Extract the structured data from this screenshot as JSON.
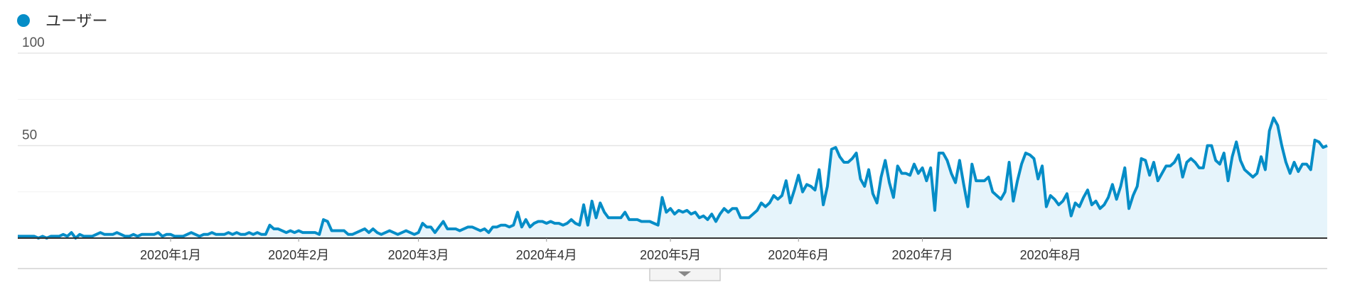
{
  "chart_data": {
    "type": "area",
    "title": "",
    "xlabel": "",
    "ylabel": "",
    "ylim": [
      0,
      100
    ],
    "grid": true,
    "legend_position": "top-left",
    "colors": {
      "line": "#058DC7",
      "fill": "#E6F4FB",
      "grid": "#E5E5E5",
      "baseline": "#333333",
      "text": "#333333"
    },
    "yticks": [
      "100",
      "50"
    ],
    "ytick_values": [
      100,
      50
    ],
    "xticks": [
      {
        "label": "2020年1月",
        "date": "2020-01-01"
      },
      {
        "label": "2020年2月",
        "date": "2020-02-01"
      },
      {
        "label": "2020年3月",
        "date": "2020-03-01"
      },
      {
        "label": "2020年4月",
        "date": "2020-04-01"
      },
      {
        "label": "2020年5月",
        "date": "2020-05-01"
      },
      {
        "label": "2020年6月",
        "date": "2020-06-01"
      },
      {
        "label": "2020年7月",
        "date": "2020-07-01"
      },
      {
        "label": "2020年8月",
        "date": "2020-08-01"
      }
    ],
    "series": [
      {
        "name": "ユーザー",
        "x_start": "2019-11-25",
        "x_step_days": 1,
        "values": [
          1,
          1,
          1,
          1,
          1,
          0,
          1,
          0,
          1,
          1,
          1,
          2,
          1,
          3,
          0,
          2,
          1,
          1,
          1,
          2,
          3,
          2,
          2,
          2,
          3,
          2,
          1,
          1,
          2,
          1,
          2,
          2,
          2,
          2,
          3,
          1,
          2,
          2,
          1,
          1,
          1,
          2,
          3,
          2,
          1,
          2,
          2,
          3,
          2,
          2,
          2,
          3,
          2,
          3,
          2,
          2,
          3,
          2,
          3,
          2,
          2,
          7,
          5,
          5,
          4,
          3,
          4,
          3,
          4,
          3,
          3,
          3,
          3,
          2,
          10,
          9,
          4,
          4,
          4,
          4,
          2,
          2,
          3,
          4,
          5,
          3,
          5,
          3,
          2,
          3,
          4,
          3,
          2,
          3,
          4,
          3,
          2,
          3,
          8,
          6,
          6,
          3,
          6,
          9,
          5,
          5,
          5,
          4,
          5,
          6,
          6,
          5,
          4,
          5,
          3,
          6,
          6,
          7,
          7,
          6,
          7,
          14,
          6,
          10,
          6,
          8,
          9,
          9,
          8,
          9,
          8,
          8,
          7,
          8,
          10,
          8,
          7,
          18,
          7,
          20,
          11,
          19,
          14,
          11,
          11,
          11,
          11,
          14,
          10,
          10,
          10,
          9,
          9,
          9,
          8,
          7,
          22,
          14,
          16,
          13,
          15,
          14,
          15,
          13,
          14,
          11,
          12,
          10,
          13,
          9,
          13,
          16,
          14,
          16,
          16,
          11,
          11,
          11,
          13,
          15,
          19,
          17,
          19,
          23,
          21,
          23,
          31,
          19,
          26,
          34,
          25,
          29,
          28,
          26,
          37,
          18,
          28,
          48,
          49,
          44,
          41,
          41,
          43,
          46,
          32,
          28,
          37,
          24,
          19,
          33,
          42,
          30,
          22,
          39,
          35,
          35,
          34,
          40,
          35,
          38,
          31,
          38,
          15,
          46,
          46,
          42,
          35,
          30,
          42,
          29,
          17,
          40,
          31,
          31,
          31,
          33,
          25,
          23,
          21,
          25,
          41,
          20,
          31,
          40,
          46,
          45,
          43,
          32,
          39,
          17,
          23,
          21,
          18,
          20,
          24,
          12,
          19,
          17,
          22,
          26,
          18,
          20,
          16,
          18,
          22,
          29,
          21,
          28,
          38,
          16,
          23,
          28,
          43,
          42,
          34,
          41,
          31,
          35,
          39,
          39,
          41,
          45,
          33,
          41,
          43,
          41,
          38,
          38,
          50,
          50,
          42,
          40,
          46,
          31,
          44,
          52,
          42,
          37,
          35,
          33,
          35,
          44,
          37,
          58,
          65,
          61,
          50,
          41,
          35,
          41,
          36,
          40,
          40,
          37,
          53,
          52,
          49,
          50
        ]
      }
    ]
  }
}
